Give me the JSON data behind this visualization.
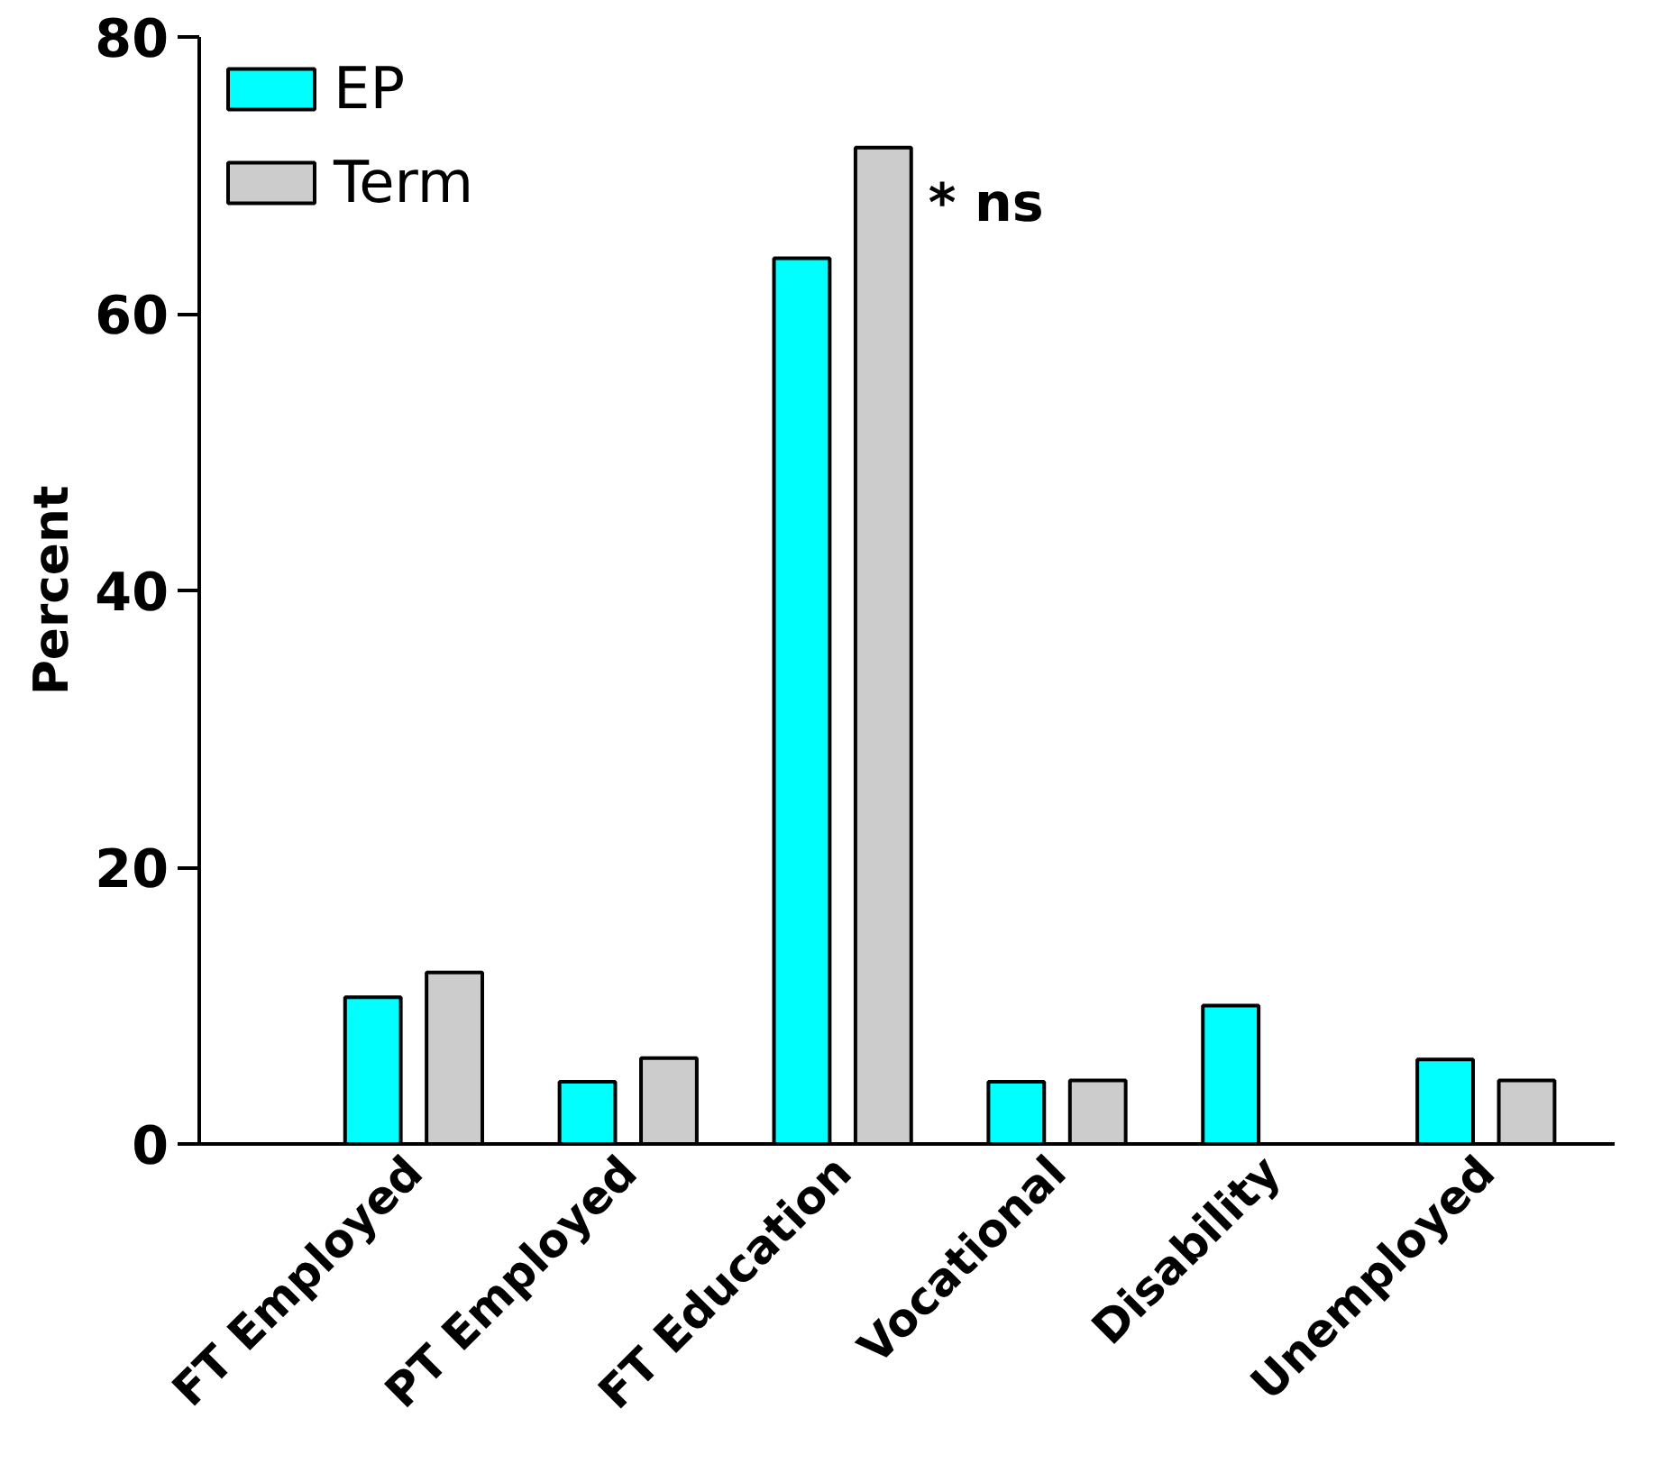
{
  "chart_data": {
    "type": "bar",
    "ylabel": "Percent",
    "categories": [
      "FT Employed",
      "PT Employed",
      "FT Education",
      "Vocational",
      "Disability",
      "Unemployed"
    ],
    "series": [
      {
        "name": "EP",
        "color": "#00ffff",
        "values": [
          10.6,
          4.5,
          64,
          4.5,
          10,
          6.1
        ]
      },
      {
        "name": "Term",
        "color": "#cccccc",
        "values": [
          12.4,
          6.2,
          72,
          4.6,
          null,
          4.6
        ]
      }
    ],
    "ylim": [
      0,
      80
    ],
    "yticks": [
      0,
      20,
      40,
      60,
      80
    ],
    "grid": false,
    "legend": "top left",
    "annotations": [
      "* ns"
    ]
  }
}
